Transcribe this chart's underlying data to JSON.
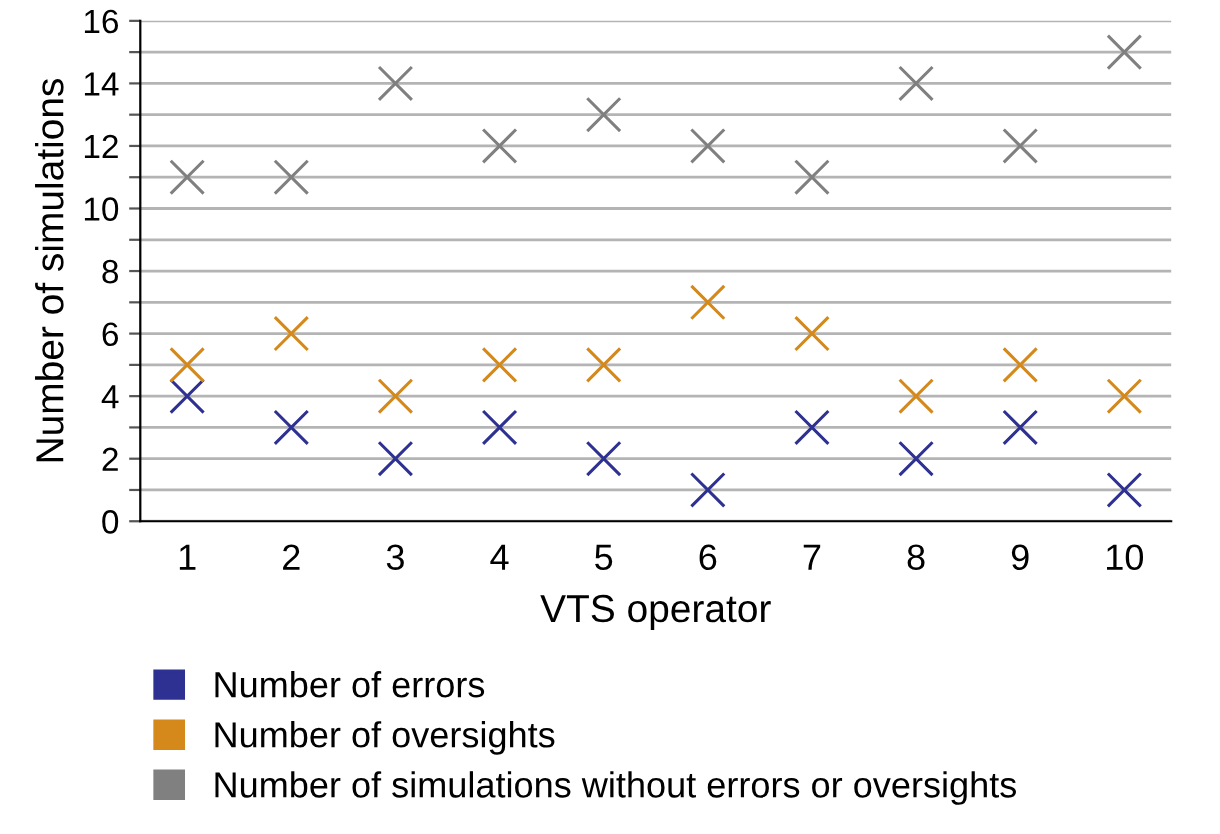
{
  "chart_data": {
    "type": "scatter",
    "xlabel": "VTS operator",
    "ylabel": "Number of simulations",
    "categories": [
      "1",
      "2",
      "3",
      "4",
      "5",
      "6",
      "7",
      "8",
      "9",
      "10"
    ],
    "series": [
      {
        "name": "Number of errors",
        "color": "#2e3192",
        "values": [
          4,
          3,
          2,
          3,
          2,
          1,
          3,
          2,
          3,
          1
        ]
      },
      {
        "name": "Number of oversights",
        "color": "#d4891a",
        "values": [
          5,
          6,
          4,
          5,
          5,
          7,
          6,
          4,
          5,
          4
        ]
      },
      {
        "name": "Number of simulations without errors or oversights",
        "color": "#808080",
        "values": [
          11,
          11,
          14,
          12,
          13,
          12,
          11,
          14,
          12,
          15
        ]
      }
    ],
    "ylim": [
      0,
      16
    ],
    "yticks": [
      0,
      {
        "value": 1,
        "label": null
      },
      2,
      {
        "value": 3,
        "label": null
      },
      4,
      {
        "value": 5,
        "label": null
      },
      6,
      {
        "value": 7,
        "label": null
      },
      8,
      {
        "value": 9,
        "label": null
      },
      10,
      {
        "value": 11,
        "label": null
      },
      12,
      {
        "value": 13,
        "label": null
      },
      14,
      {
        "value": 15,
        "label": null
      },
      16
    ],
    "grid": "y",
    "marker": "cross",
    "legend": "bottom"
  }
}
